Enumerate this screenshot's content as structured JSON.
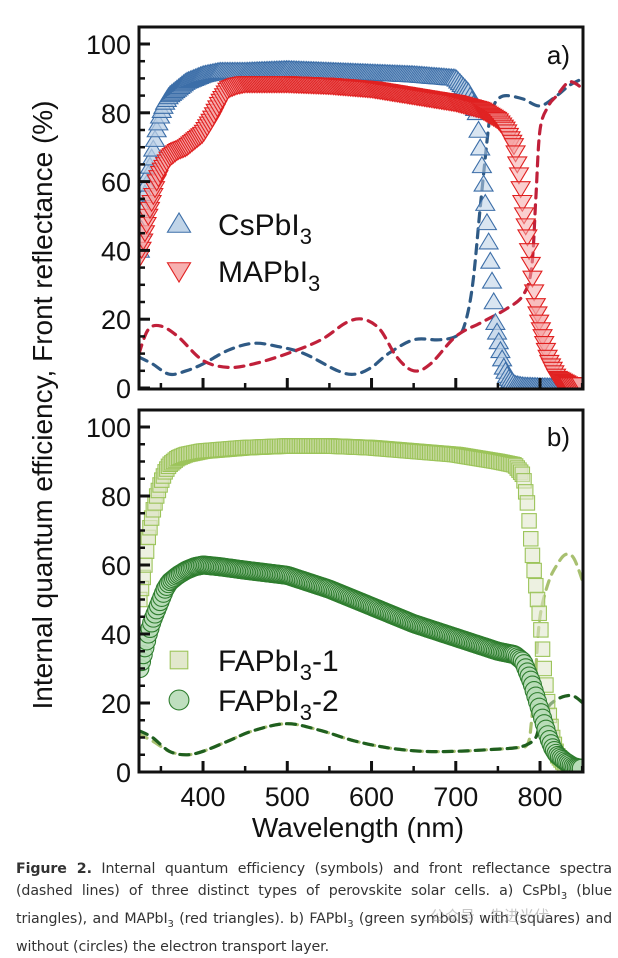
{
  "figure": {
    "y_axis_label": "Internal quantum efficiency, Front reflectance (%)",
    "x_axis_label": "Wavelength (nm)",
    "caption": {
      "label": "Figure 2.",
      "parts": [
        {
          "t": " Internal quantum efficiency (symbols) and front reflectance spectra (dashed lines) of three distinct types of perovskite solar cells. a) CsPbI"
        },
        {
          "sub": "3"
        },
        {
          "t": " (blue triangles), and MAPbI"
        },
        {
          "sub": "3"
        },
        {
          "t": " (red triangles). b) FAPbI"
        },
        {
          "sub": "3"
        },
        {
          "t": " (green symbols) with (squares) and without (circles) the electron transport layer."
        }
      ]
    },
    "watermark": "公众号 · 先进光伏"
  },
  "chart_data": [
    {
      "type": "scatter",
      "panel_label": "a)",
      "xlabel": "Wavelength (nm)",
      "ylabel": "Internal quantum efficiency, Front reflectance (%)",
      "xlim": [
        324,
        851
      ],
      "ylim": [
        0,
        100
      ],
      "xticks": [
        400,
        500,
        600,
        700,
        800
      ],
      "yticks": [
        0,
        20,
        40,
        60,
        80,
        100
      ],
      "legend_position": "middle-left",
      "series": [
        {
          "name": "CsPbI3",
          "legend_main": "CsPbI",
          "legend_sub": "3",
          "kind": "iqe",
          "marker": "triangle-up",
          "color": "#3c6ea8",
          "fill": "#b9cfe6",
          "x": [
            325,
            330,
            335,
            340,
            345,
            350,
            355,
            360,
            370,
            380,
            390,
            400,
            420,
            450,
            500,
            550,
            600,
            650,
            700,
            715,
            725,
            732,
            737,
            742,
            747,
            752,
            757,
            762,
            770,
            780,
            800,
            820,
            840,
            850
          ],
          "y": [
            40,
            55,
            62,
            68,
            75,
            80,
            83,
            85,
            87,
            89,
            90,
            91,
            92,
            92,
            92.5,
            92,
            91.5,
            91,
            90,
            86,
            80,
            62,
            48,
            34,
            19,
            12,
            6,
            3,
            1,
            0.5,
            0.3,
            0.2,
            0.2,
            0.2
          ]
        },
        {
          "name": "MAPbI3",
          "legend_main": "MAPbI",
          "legend_sub": "3",
          "kind": "iqe",
          "marker": "triangle-down",
          "color": "#e02020",
          "fill": "#f6a7a7",
          "x": [
            325,
            330,
            335,
            340,
            345,
            350,
            360,
            370,
            380,
            390,
            400,
            410,
            420,
            430,
            440,
            450,
            500,
            550,
            600,
            650,
            700,
            730,
            750,
            760,
            770,
            775,
            780,
            785,
            790,
            795,
            800,
            805,
            810,
            820,
            835,
            850
          ],
          "y": [
            38,
            44,
            50,
            55,
            60,
            63,
            67,
            69,
            70,
            72,
            74,
            78,
            83,
            87,
            88,
            88.5,
            88.5,
            88,
            87,
            85,
            83,
            81,
            78,
            75,
            70,
            62,
            52,
            44,
            34,
            24,
            18,
            13,
            8,
            3,
            1,
            1
          ]
        },
        {
          "name": "CsPbI3 reflectance",
          "kind": "reflectance",
          "style": "dashed",
          "color": "#2f5a85",
          "x": [
            324,
            340,
            360,
            380,
            400,
            430,
            460,
            490,
            520,
            560,
            580,
            600,
            620,
            650,
            680,
            700,
            710,
            720,
            730,
            740,
            745,
            750,
            760,
            780,
            800,
            820,
            835,
            851
          ],
          "y": [
            9,
            7,
            4,
            5,
            7,
            11,
            13,
            12,
            10,
            5,
            4,
            6,
            10,
            14,
            14,
            15,
            18,
            30,
            55,
            78,
            82,
            84,
            85,
            84,
            82,
            85,
            88,
            90
          ]
        },
        {
          "name": "MAPbI3 reflectance",
          "kind": "reflectance",
          "style": "dashed",
          "color": "#c0203a",
          "x": [
            324,
            335,
            350,
            370,
            400,
            430,
            460,
            500,
            540,
            570,
            590,
            610,
            630,
            650,
            670,
            700,
            730,
            760,
            780,
            790,
            795,
            800,
            810,
            820,
            835,
            851
          ],
          "y": [
            10,
            17,
            18,
            15,
            8,
            6,
            7,
            10,
            14,
            19,
            20,
            17,
            9,
            5,
            7,
            15,
            19,
            23,
            27,
            35,
            55,
            75,
            82,
            85,
            89,
            87
          ]
        }
      ]
    },
    {
      "type": "scatter",
      "panel_label": "b)",
      "xlabel": "Wavelength (nm)",
      "ylabel": "Internal quantum efficiency, Front reflectance (%)",
      "xlim": [
        324,
        851
      ],
      "ylim": [
        0,
        100
      ],
      "xticks": [
        400,
        500,
        600,
        700,
        800
      ],
      "yticks": [
        0,
        20,
        40,
        60,
        80,
        100
      ],
      "legend_position": "lower-left",
      "series": [
        {
          "name": "FAPbI3-1",
          "legend_main": "FAPbI",
          "legend_sub": "3",
          "legend_suffix": "-1",
          "kind": "iqe",
          "marker": "square",
          "color": "#9cc45a",
          "fill": "#dfe6c8",
          "x": [
            325,
            330,
            335,
            340,
            345,
            350,
            355,
            360,
            370,
            380,
            400,
            450,
            500,
            550,
            600,
            650,
            700,
            750,
            770,
            780,
            785,
            790,
            795,
            800,
            805,
            810,
            815,
            820,
            830,
            840,
            850
          ],
          "y": [
            50,
            58,
            68,
            75,
            80,
            84,
            87,
            89,
            91,
            92,
            93,
            94,
            94.5,
            94.5,
            94,
            93,
            92,
            90,
            89,
            86,
            78,
            65,
            54,
            44,
            30,
            18,
            10,
            5,
            2,
            1,
            0.5
          ]
        },
        {
          "name": "FAPbI3-2",
          "legend_main": "FAPbI",
          "legend_sub": "3",
          "legend_suffix": "-2",
          "kind": "iqe",
          "marker": "circle",
          "color": "#2e7d2e",
          "fill": "#b8dcb8",
          "x": [
            325,
            330,
            335,
            340,
            345,
            350,
            355,
            360,
            370,
            380,
            390,
            400,
            420,
            450,
            500,
            550,
            600,
            650,
            700,
            750,
            770,
            780,
            785,
            790,
            795,
            800,
            805,
            810,
            815,
            820,
            830,
            840,
            850
          ],
          "y": [
            30,
            35,
            40,
            44,
            47,
            50,
            53,
            55,
            57,
            58.5,
            59.5,
            60,
            59.5,
            58.5,
            57,
            53,
            48,
            43,
            39,
            35,
            34,
            32,
            29,
            26,
            22,
            18,
            14,
            10,
            7,
            5,
            3,
            1.5,
            1
          ]
        },
        {
          "name": "FAPbI3-1 reflectance",
          "kind": "reflectance",
          "style": "dashed",
          "color": "#a8c070",
          "x": [
            324,
            340,
            360,
            380,
            400,
            430,
            460,
            500,
            540,
            580,
            620,
            660,
            700,
            740,
            770,
            785,
            790,
            795,
            800,
            810,
            820,
            830,
            840,
            851
          ],
          "y": [
            11,
            9,
            6,
            5,
            6,
            9,
            12,
            14,
            12,
            9,
            7,
            6,
            6,
            6.5,
            7,
            8,
            15,
            30,
            45,
            55,
            60,
            63,
            62,
            55
          ]
        },
        {
          "name": "FAPbI3-2 reflectance",
          "kind": "reflectance",
          "style": "dashed",
          "color": "#1f5f1f",
          "x": [
            324,
            340,
            360,
            380,
            400,
            430,
            460,
            500,
            540,
            580,
            620,
            660,
            700,
            740,
            770,
            785,
            795,
            800,
            810,
            820,
            830,
            840,
            851
          ],
          "y": [
            12,
            10,
            6,
            5,
            6,
            9,
            12,
            14,
            12,
            9,
            7,
            6,
            6,
            6.5,
            7,
            8,
            10,
            14,
            19,
            21,
            22,
            22,
            20
          ]
        }
      ]
    }
  ]
}
